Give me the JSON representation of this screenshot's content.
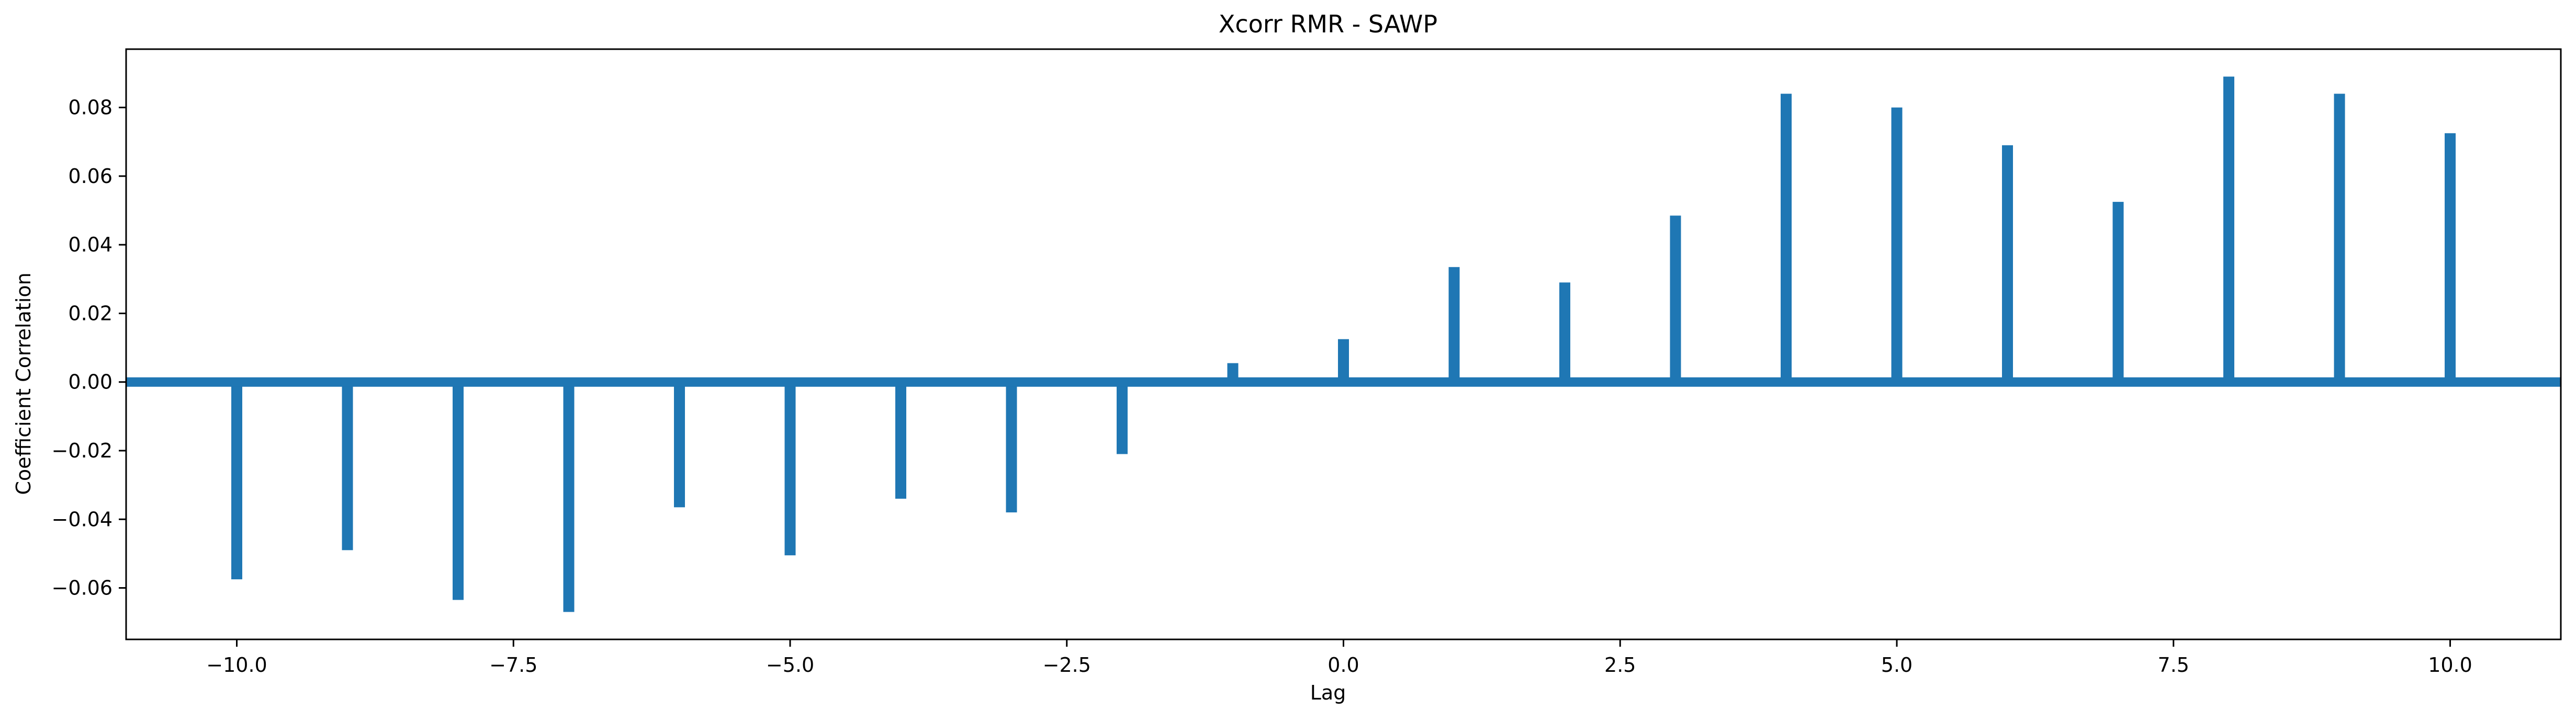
{
  "chart_data": {
    "type": "bar",
    "title": "Xcorr RMR - SAWP",
    "xlabel": "Lag",
    "ylabel": "Coefficient Correlation",
    "xlim": [
      -11,
      11
    ],
    "ylim": [
      -0.075,
      0.097
    ],
    "xticks": [
      -10.0,
      -7.5,
      -5.0,
      -2.5,
      0.0,
      2.5,
      5.0,
      7.5,
      10.0
    ],
    "xtick_labels": [
      "−10.0",
      "−7.5",
      "−5.0",
      "−2.5",
      "0.0",
      "2.5",
      "5.0",
      "7.5",
      "10.0"
    ],
    "yticks": [
      -0.06,
      -0.04,
      -0.02,
      0.0,
      0.02,
      0.04,
      0.06,
      0.08
    ],
    "ytick_labels": [
      "−0.06",
      "−0.04",
      "−0.02",
      "0.00",
      "0.02",
      "0.04",
      "0.06",
      "0.08"
    ],
    "grid": false,
    "color": "#1f77b4",
    "baseline": 0.0,
    "x": [
      -10,
      -9,
      -8,
      -7,
      -6,
      -5,
      -4,
      -3,
      -2,
      -1,
      0,
      1,
      2,
      3,
      4,
      5,
      6,
      7,
      8,
      9,
      10
    ],
    "values": [
      -0.0575,
      -0.049,
      -0.0635,
      -0.067,
      -0.0365,
      -0.0505,
      -0.034,
      -0.038,
      -0.021,
      0.0055,
      0.0125,
      0.0335,
      0.029,
      0.0485,
      0.084,
      0.08,
      0.069,
      0.0525,
      0.089,
      0.084,
      0.0725
    ]
  }
}
